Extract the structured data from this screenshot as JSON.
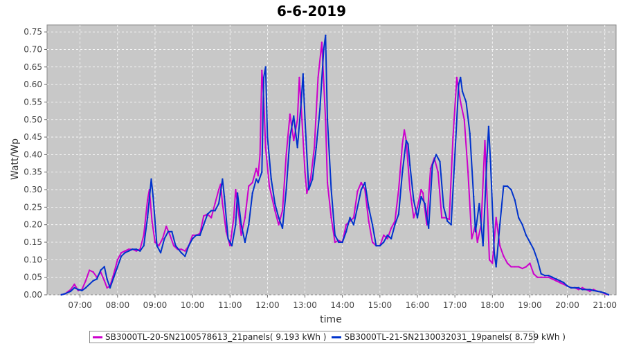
{
  "chart_data": {
    "type": "line",
    "title": "6-6-2019",
    "xlabel": "time",
    "ylabel": "Watt/Wp",
    "xticks": [
      "07:00",
      "08:00",
      "09:00",
      "10:00",
      "11:00",
      "12:00",
      "13:00",
      "14:00",
      "15:00",
      "16:00",
      "17:00",
      "18:00",
      "19:00",
      "20:00",
      "21:00"
    ],
    "yticks": [
      "0.00",
      "0.05",
      "0.10",
      "0.15",
      "0.20",
      "0.25",
      "0.30",
      "0.35",
      "0.40",
      "0.45",
      "0.50",
      "0.55",
      "0.60",
      "0.65",
      "0.70",
      "0.75"
    ],
    "xlim": [
      6.12,
      21.3
    ],
    "ylim": [
      0,
      0.77
    ],
    "grid": true,
    "legend_position": "bottom",
    "colors": {
      "plot_background": "#c8c8c8",
      "grid": "#ffffff"
    },
    "series": [
      {
        "name": "SB3000TL-20-SN2100578613_21panels( 9.193 kWh )",
        "color": "#cc00cc",
        "points": [
          [
            6.5,
            0.0
          ],
          [
            6.6,
            0.003
          ],
          [
            6.75,
            0.015
          ],
          [
            6.85,
            0.03
          ],
          [
            6.95,
            0.012
          ],
          [
            7.05,
            0.015
          ],
          [
            7.15,
            0.04
          ],
          [
            7.25,
            0.07
          ],
          [
            7.35,
            0.065
          ],
          [
            7.45,
            0.05
          ],
          [
            7.55,
            0.065
          ],
          [
            7.65,
            0.04
          ],
          [
            7.72,
            0.02
          ],
          [
            7.8,
            0.025
          ],
          [
            7.9,
            0.06
          ],
          [
            8.0,
            0.1
          ],
          [
            8.1,
            0.12
          ],
          [
            8.2,
            0.125
          ],
          [
            8.3,
            0.13
          ],
          [
            8.4,
            0.13
          ],
          [
            8.5,
            0.125
          ],
          [
            8.6,
            0.13
          ],
          [
            8.7,
            0.17
          ],
          [
            8.8,
            0.27
          ],
          [
            8.85,
            0.3
          ],
          [
            8.92,
            0.21
          ],
          [
            9.0,
            0.15
          ],
          [
            9.1,
            0.14
          ],
          [
            9.2,
            0.16
          ],
          [
            9.3,
            0.195
          ],
          [
            9.4,
            0.17
          ],
          [
            9.5,
            0.14
          ],
          [
            9.6,
            0.13
          ],
          [
            9.7,
            0.13
          ],
          [
            9.8,
            0.125
          ],
          [
            9.9,
            0.14
          ],
          [
            10.0,
            0.17
          ],
          [
            10.1,
            0.17
          ],
          [
            10.2,
            0.175
          ],
          [
            10.3,
            0.225
          ],
          [
            10.4,
            0.23
          ],
          [
            10.5,
            0.22
          ],
          [
            10.6,
            0.26
          ],
          [
            10.7,
            0.3
          ],
          [
            10.75,
            0.315
          ],
          [
            10.8,
            0.26
          ],
          [
            10.9,
            0.18
          ],
          [
            11.0,
            0.14
          ],
          [
            11.1,
            0.22
          ],
          [
            11.15,
            0.3
          ],
          [
            11.2,
            0.26
          ],
          [
            11.3,
            0.17
          ],
          [
            11.4,
            0.22
          ],
          [
            11.5,
            0.31
          ],
          [
            11.6,
            0.32
          ],
          [
            11.7,
            0.36
          ],
          [
            11.75,
            0.34
          ],
          [
            11.8,
            0.4
          ],
          [
            11.85,
            0.64
          ],
          [
            11.9,
            0.56
          ],
          [
            11.95,
            0.42
          ],
          [
            12.05,
            0.31
          ],
          [
            12.2,
            0.24
          ],
          [
            12.3,
            0.2
          ],
          [
            12.4,
            0.24
          ],
          [
            12.5,
            0.4
          ],
          [
            12.6,
            0.515
          ],
          [
            12.7,
            0.44
          ],
          [
            12.8,
            0.5
          ],
          [
            12.85,
            0.62
          ],
          [
            12.92,
            0.5
          ],
          [
            13.0,
            0.35
          ],
          [
            13.05,
            0.29
          ],
          [
            13.15,
            0.33
          ],
          [
            13.25,
            0.42
          ],
          [
            13.35,
            0.62
          ],
          [
            13.45,
            0.72
          ],
          [
            13.55,
            0.5
          ],
          [
            13.6,
            0.32
          ],
          [
            13.7,
            0.22
          ],
          [
            13.8,
            0.15
          ],
          [
            13.9,
            0.155
          ],
          [
            14.0,
            0.15
          ],
          [
            14.1,
            0.2
          ],
          [
            14.2,
            0.21
          ],
          [
            14.3,
            0.22
          ],
          [
            14.4,
            0.295
          ],
          [
            14.5,
            0.32
          ],
          [
            14.6,
            0.3
          ],
          [
            14.7,
            0.21
          ],
          [
            14.8,
            0.15
          ],
          [
            14.9,
            0.14
          ],
          [
            15.0,
            0.14
          ],
          [
            15.1,
            0.17
          ],
          [
            15.2,
            0.16
          ],
          [
            15.3,
            0.19
          ],
          [
            15.4,
            0.21
          ],
          [
            15.5,
            0.3
          ],
          [
            15.6,
            0.43
          ],
          [
            15.65,
            0.47
          ],
          [
            15.7,
            0.44
          ],
          [
            15.8,
            0.3
          ],
          [
            15.9,
            0.22
          ],
          [
            16.0,
            0.25
          ],
          [
            16.1,
            0.3
          ],
          [
            16.15,
            0.29
          ],
          [
            16.25,
            0.2
          ],
          [
            16.35,
            0.36
          ],
          [
            16.45,
            0.39
          ],
          [
            16.55,
            0.35
          ],
          [
            16.65,
            0.22
          ],
          [
            16.75,
            0.22
          ],
          [
            16.85,
            0.215
          ],
          [
            16.95,
            0.45
          ],
          [
            17.05,
            0.62
          ],
          [
            17.15,
            0.55
          ],
          [
            17.25,
            0.5
          ],
          [
            17.35,
            0.35
          ],
          [
            17.45,
            0.16
          ],
          [
            17.55,
            0.2
          ],
          [
            17.6,
            0.15
          ],
          [
            17.7,
            0.2
          ],
          [
            17.8,
            0.44
          ],
          [
            17.85,
            0.3
          ],
          [
            17.92,
            0.1
          ],
          [
            18.0,
            0.09
          ],
          [
            18.1,
            0.22
          ],
          [
            18.2,
            0.14
          ],
          [
            18.3,
            0.11
          ],
          [
            18.4,
            0.09
          ],
          [
            18.5,
            0.08
          ],
          [
            18.6,
            0.08
          ],
          [
            18.7,
            0.08
          ],
          [
            18.8,
            0.075
          ],
          [
            18.9,
            0.08
          ],
          [
            19.0,
            0.09
          ],
          [
            19.1,
            0.06
          ],
          [
            19.2,
            0.05
          ],
          [
            19.3,
            0.05
          ],
          [
            19.4,
            0.05
          ],
          [
            19.5,
            0.05
          ],
          [
            19.6,
            0.045
          ],
          [
            19.7,
            0.04
          ],
          [
            19.8,
            0.035
          ],
          [
            19.9,
            0.03
          ],
          [
            20.0,
            0.025
          ],
          [
            20.1,
            0.02
          ],
          [
            20.2,
            0.02
          ],
          [
            20.3,
            0.015
          ],
          [
            20.4,
            0.02
          ],
          [
            20.5,
            0.015
          ],
          [
            20.6,
            0.01
          ],
          [
            20.7,
            0.015
          ],
          [
            20.8,
            0.01
          ],
          [
            20.9,
            0.008
          ],
          [
            21.0,
            0.003
          ],
          [
            21.1,
            0.0
          ]
        ]
      },
      {
        "name": "SB3000TL-21-SN2130032031_19panels( 8.759 kWh )",
        "color": "#0033cc",
        "points": [
          [
            6.5,
            0.0
          ],
          [
            6.6,
            0.003
          ],
          [
            6.75,
            0.01
          ],
          [
            6.85,
            0.02
          ],
          [
            6.95,
            0.015
          ],
          [
            7.05,
            0.012
          ],
          [
            7.15,
            0.02
          ],
          [
            7.25,
            0.03
          ],
          [
            7.35,
            0.04
          ],
          [
            7.45,
            0.045
          ],
          [
            7.55,
            0.07
          ],
          [
            7.65,
            0.08
          ],
          [
            7.72,
            0.045
          ],
          [
            7.8,
            0.02
          ],
          [
            7.9,
            0.05
          ],
          [
            8.0,
            0.08
          ],
          [
            8.1,
            0.11
          ],
          [
            8.2,
            0.12
          ],
          [
            8.3,
            0.125
          ],
          [
            8.4,
            0.13
          ],
          [
            8.5,
            0.13
          ],
          [
            8.6,
            0.125
          ],
          [
            8.7,
            0.14
          ],
          [
            8.8,
            0.22
          ],
          [
            8.9,
            0.33
          ],
          [
            8.95,
            0.28
          ],
          [
            9.05,
            0.14
          ],
          [
            9.15,
            0.12
          ],
          [
            9.25,
            0.16
          ],
          [
            9.35,
            0.18
          ],
          [
            9.45,
            0.18
          ],
          [
            9.55,
            0.14
          ],
          [
            9.7,
            0.12
          ],
          [
            9.8,
            0.11
          ],
          [
            9.9,
            0.14
          ],
          [
            10.0,
            0.16
          ],
          [
            10.1,
            0.17
          ],
          [
            10.2,
            0.17
          ],
          [
            10.3,
            0.2
          ],
          [
            10.4,
            0.23
          ],
          [
            10.5,
            0.24
          ],
          [
            10.6,
            0.24
          ],
          [
            10.7,
            0.26
          ],
          [
            10.8,
            0.33
          ],
          [
            10.85,
            0.28
          ],
          [
            10.95,
            0.16
          ],
          [
            11.05,
            0.14
          ],
          [
            11.15,
            0.2
          ],
          [
            11.2,
            0.29
          ],
          [
            11.3,
            0.2
          ],
          [
            11.4,
            0.15
          ],
          [
            11.5,
            0.2
          ],
          [
            11.6,
            0.29
          ],
          [
            11.7,
            0.33
          ],
          [
            11.75,
            0.32
          ],
          [
            11.85,
            0.35
          ],
          [
            11.9,
            0.62
          ],
          [
            11.95,
            0.65
          ],
          [
            12.0,
            0.45
          ],
          [
            12.1,
            0.33
          ],
          [
            12.2,
            0.26
          ],
          [
            12.3,
            0.22
          ],
          [
            12.4,
            0.19
          ],
          [
            12.5,
            0.3
          ],
          [
            12.6,
            0.45
          ],
          [
            12.7,
            0.51
          ],
          [
            12.8,
            0.42
          ],
          [
            12.9,
            0.55
          ],
          [
            12.95,
            0.63
          ],
          [
            13.0,
            0.5
          ],
          [
            13.1,
            0.3
          ],
          [
            13.2,
            0.33
          ],
          [
            13.3,
            0.42
          ],
          [
            13.4,
            0.53
          ],
          [
            13.5,
            0.7
          ],
          [
            13.55,
            0.74
          ],
          [
            13.6,
            0.5
          ],
          [
            13.7,
            0.3
          ],
          [
            13.8,
            0.17
          ],
          [
            13.9,
            0.15
          ],
          [
            14.0,
            0.15
          ],
          [
            14.1,
            0.18
          ],
          [
            14.2,
            0.22
          ],
          [
            14.3,
            0.2
          ],
          [
            14.4,
            0.25
          ],
          [
            14.5,
            0.3
          ],
          [
            14.6,
            0.32
          ],
          [
            14.7,
            0.25
          ],
          [
            14.8,
            0.2
          ],
          [
            14.9,
            0.14
          ],
          [
            15.0,
            0.14
          ],
          [
            15.1,
            0.15
          ],
          [
            15.2,
            0.17
          ],
          [
            15.3,
            0.16
          ],
          [
            15.4,
            0.2
          ],
          [
            15.5,
            0.23
          ],
          [
            15.6,
            0.35
          ],
          [
            15.7,
            0.44
          ],
          [
            15.75,
            0.43
          ],
          [
            15.8,
            0.37
          ],
          [
            15.9,
            0.27
          ],
          [
            16.0,
            0.22
          ],
          [
            16.1,
            0.28
          ],
          [
            16.2,
            0.26
          ],
          [
            16.3,
            0.19
          ],
          [
            16.4,
            0.37
          ],
          [
            16.5,
            0.4
          ],
          [
            16.6,
            0.38
          ],
          [
            16.7,
            0.25
          ],
          [
            16.8,
            0.21
          ],
          [
            16.9,
            0.2
          ],
          [
            17.0,
            0.4
          ],
          [
            17.1,
            0.6
          ],
          [
            17.15,
            0.62
          ],
          [
            17.2,
            0.58
          ],
          [
            17.3,
            0.55
          ],
          [
            17.4,
            0.46
          ],
          [
            17.5,
            0.28
          ],
          [
            17.55,
            0.18
          ],
          [
            17.65,
            0.26
          ],
          [
            17.75,
            0.14
          ],
          [
            17.85,
            0.38
          ],
          [
            17.9,
            0.48
          ],
          [
            17.95,
            0.38
          ],
          [
            18.05,
            0.12
          ],
          [
            18.1,
            0.08
          ],
          [
            18.2,
            0.2
          ],
          [
            18.3,
            0.31
          ],
          [
            18.4,
            0.31
          ],
          [
            18.5,
            0.3
          ],
          [
            18.6,
            0.27
          ],
          [
            18.7,
            0.22
          ],
          [
            18.8,
            0.2
          ],
          [
            18.9,
            0.17
          ],
          [
            19.0,
            0.15
          ],
          [
            19.1,
            0.13
          ],
          [
            19.2,
            0.1
          ],
          [
            19.3,
            0.06
          ],
          [
            19.4,
            0.055
          ],
          [
            19.5,
            0.055
          ],
          [
            19.6,
            0.05
          ],
          [
            19.7,
            0.045
          ],
          [
            19.8,
            0.04
          ],
          [
            19.9,
            0.035
          ],
          [
            20.0,
            0.025
          ],
          [
            20.1,
            0.02
          ],
          [
            20.2,
            0.02
          ],
          [
            20.3,
            0.02
          ],
          [
            20.4,
            0.015
          ],
          [
            20.5,
            0.015
          ],
          [
            20.6,
            0.015
          ],
          [
            20.7,
            0.012
          ],
          [
            20.8,
            0.01
          ],
          [
            20.9,
            0.008
          ],
          [
            21.0,
            0.005
          ],
          [
            21.1,
            0.0
          ]
        ]
      }
    ]
  }
}
